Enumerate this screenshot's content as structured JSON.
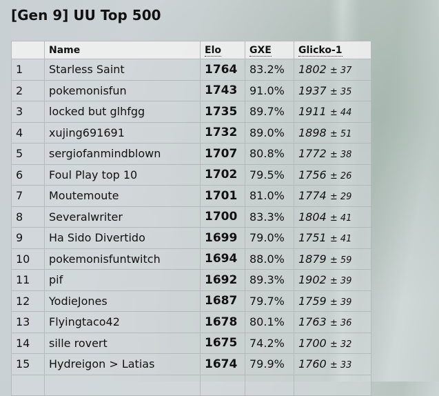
{
  "title": "[Gen 9] UU Top 500",
  "columns": [
    "",
    "Name",
    "Elo",
    "GXE",
    "Glicko-1"
  ],
  "rows": [
    {
      "rank": "1",
      "name": "Starless Saint",
      "elo": "1764",
      "gxe": "83.2%",
      "glicko": "1802",
      "dev": "37"
    },
    {
      "rank": "2",
      "name": "pokemonisfun",
      "elo": "1743",
      "gxe": "91.0%",
      "glicko": "1937",
      "dev": "35"
    },
    {
      "rank": "3",
      "name": "locked but glhfgg",
      "elo": "1735",
      "gxe": "89.7%",
      "glicko": "1911",
      "dev": "44"
    },
    {
      "rank": "4",
      "name": "xujing691691",
      "elo": "1732",
      "gxe": "89.0%",
      "glicko": "1898",
      "dev": "51"
    },
    {
      "rank": "5",
      "name": "sergiofanmindblown",
      "elo": "1707",
      "gxe": "80.8%",
      "glicko": "1772",
      "dev": "38"
    },
    {
      "rank": "6",
      "name": "Foul Play top 10",
      "elo": "1702",
      "gxe": "79.5%",
      "glicko": "1756",
      "dev": "26"
    },
    {
      "rank": "7",
      "name": "Moutemoute",
      "elo": "1701",
      "gxe": "81.0%",
      "glicko": "1774",
      "dev": "29"
    },
    {
      "rank": "8",
      "name": "Severalwriter",
      "elo": "1700",
      "gxe": "83.3%",
      "glicko": "1804",
      "dev": "41"
    },
    {
      "rank": "9",
      "name": "Ha Sido Divertido",
      "elo": "1699",
      "gxe": "79.0%",
      "glicko": "1751",
      "dev": "41"
    },
    {
      "rank": "10",
      "name": "pokemonisfuntwitch",
      "elo": "1694",
      "gxe": "88.0%",
      "glicko": "1879",
      "dev": "59"
    },
    {
      "rank": "11",
      "name": "pif",
      "elo": "1692",
      "gxe": "89.3%",
      "glicko": "1902",
      "dev": "39"
    },
    {
      "rank": "12",
      "name": "YodieJones",
      "elo": "1687",
      "gxe": "79.7%",
      "glicko": "1759",
      "dev": "39"
    },
    {
      "rank": "13",
      "name": "Flyingtaco42",
      "elo": "1678",
      "gxe": "80.1%",
      "glicko": "1763",
      "dev": "36"
    },
    {
      "rank": "14",
      "name": "sille rovert",
      "elo": "1675",
      "gxe": "74.2%",
      "glicko": "1700",
      "dev": "32"
    },
    {
      "rank": "15",
      "name": "Hydreigon > Latias",
      "elo": "1674",
      "gxe": "79.9%",
      "glicko": "1760",
      "dev": "33"
    }
  ]
}
